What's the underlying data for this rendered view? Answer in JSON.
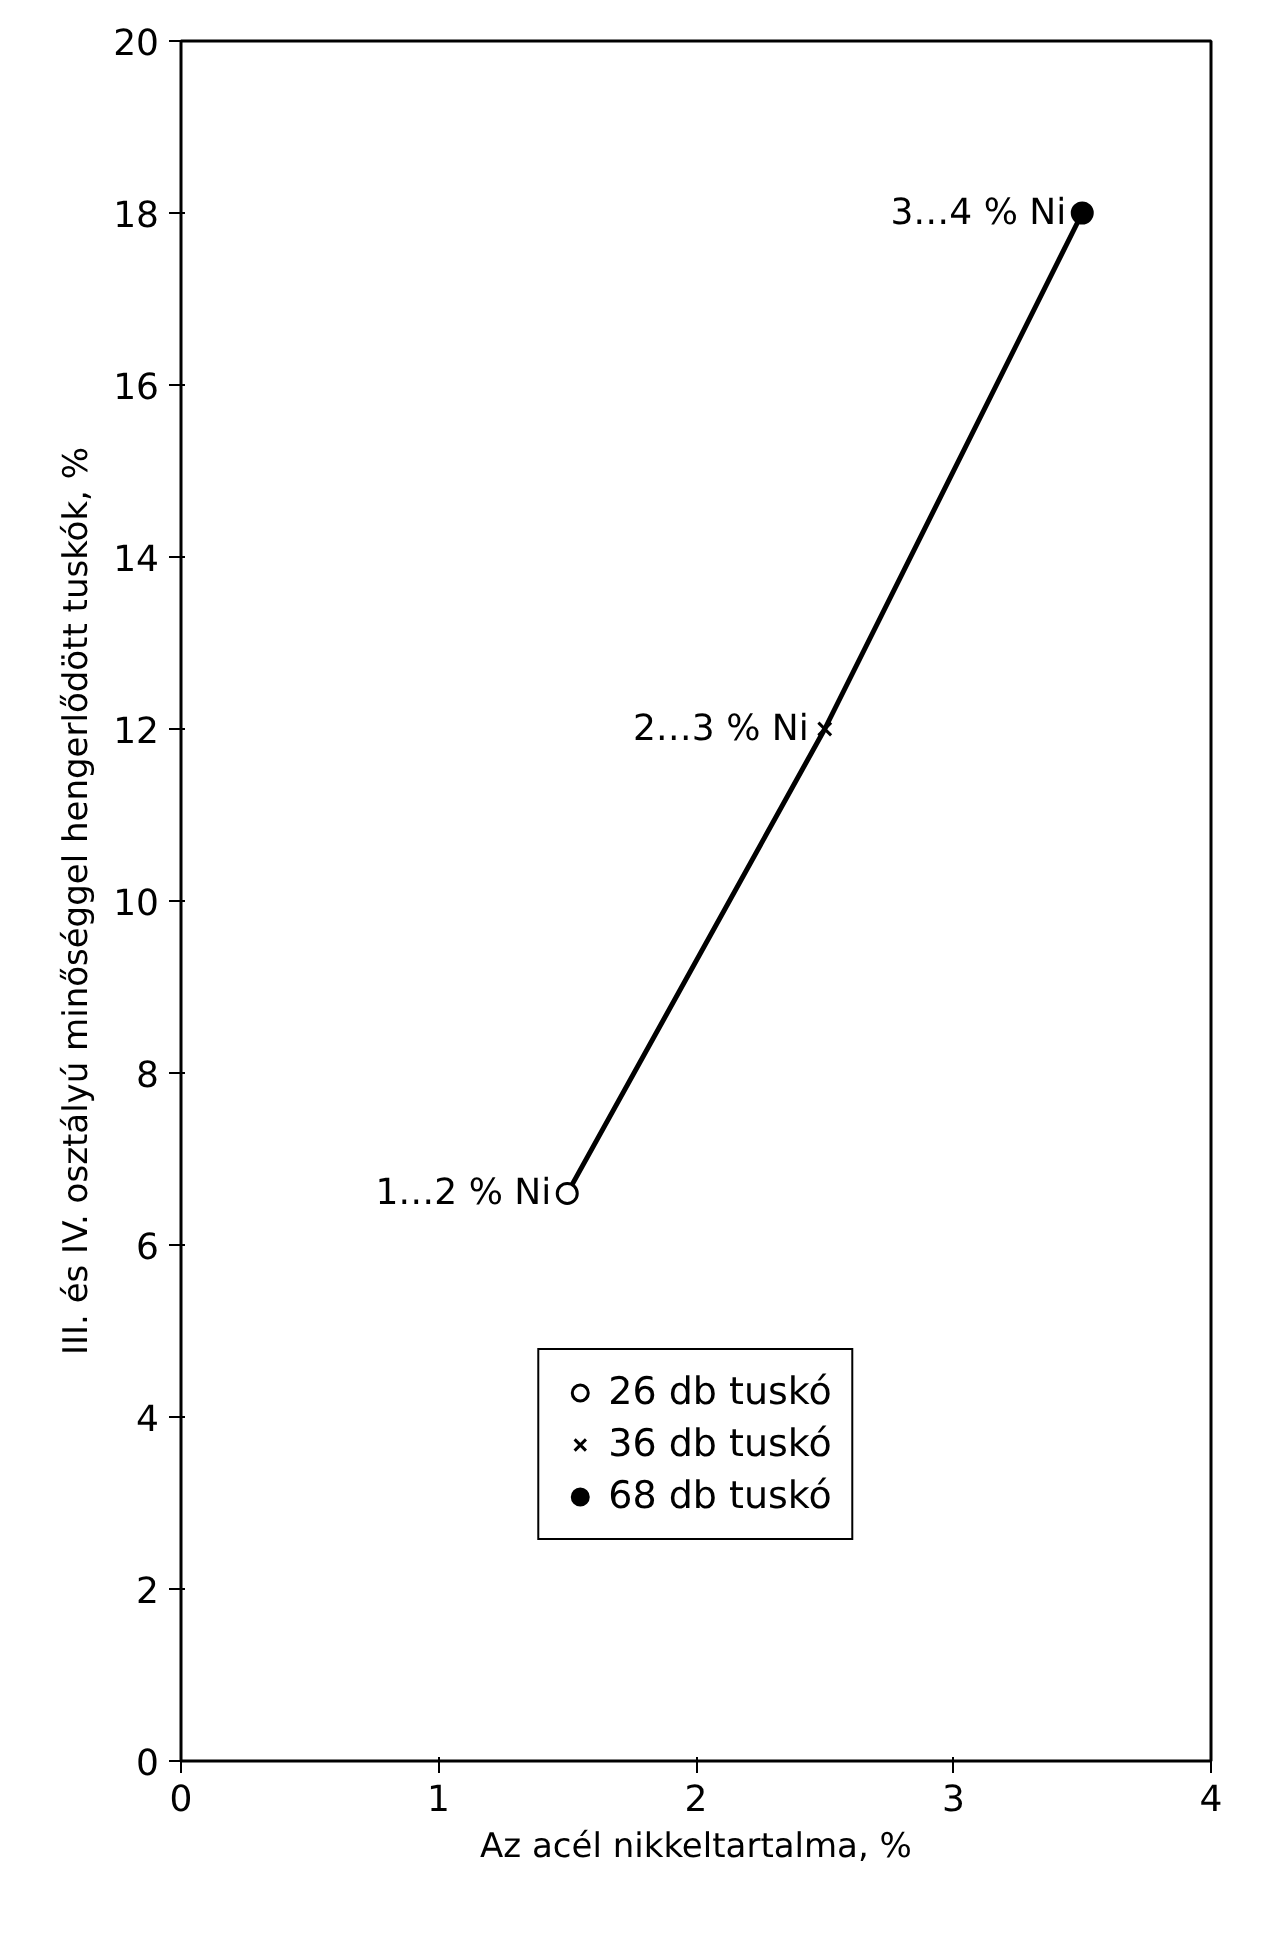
{
  "chart_data": {
    "type": "line",
    "xlabel": "Az acél nikkeltartalma, %",
    "ylabel": "III. és IV. osztályú minőséggel hengerlődött tuskók, %",
    "xlim": [
      0,
      4
    ],
    "ylim": [
      0,
      20
    ],
    "xticks": [
      0,
      1,
      2,
      3,
      4
    ],
    "yticks": [
      0,
      2,
      4,
      6,
      8,
      10,
      12,
      14,
      16,
      18,
      20
    ],
    "grid": false,
    "legend": "bottom",
    "series": [
      {
        "x": [
          1.5,
          2.5,
          3.5
        ],
        "values": [
          6.6,
          12,
          18
        ],
        "color": "#000000",
        "marker": "none",
        "line_style": "solid"
      },
      {
        "type": "scatter",
        "name": "26 db tuskó",
        "x": [
          1.5
        ],
        "values": [
          6.6
        ],
        "color": "#ffffff",
        "marker": "circle"
      },
      {
        "type": "scatter",
        "name": "36 db tuskó",
        "x": [
          2.5
        ],
        "values": [
          12
        ],
        "color": "#000000",
        "marker": "cross"
      },
      {
        "type": "scatter",
        "name": "68 db tuskó",
        "x": [
          3.5
        ],
        "values": [
          18
        ],
        "color": "#000000",
        "marker": "circle"
      }
    ],
    "annotations": [
      {
        "text": "1…2 % Ni",
        "x": 1.5,
        "y": 6.6
      },
      {
        "text": "2…3 % Ni",
        "x": 2.5,
        "y": 12
      },
      {
        "text": "3…4 % Ni",
        "x": 3.5,
        "y": 18
      }
    ]
  }
}
